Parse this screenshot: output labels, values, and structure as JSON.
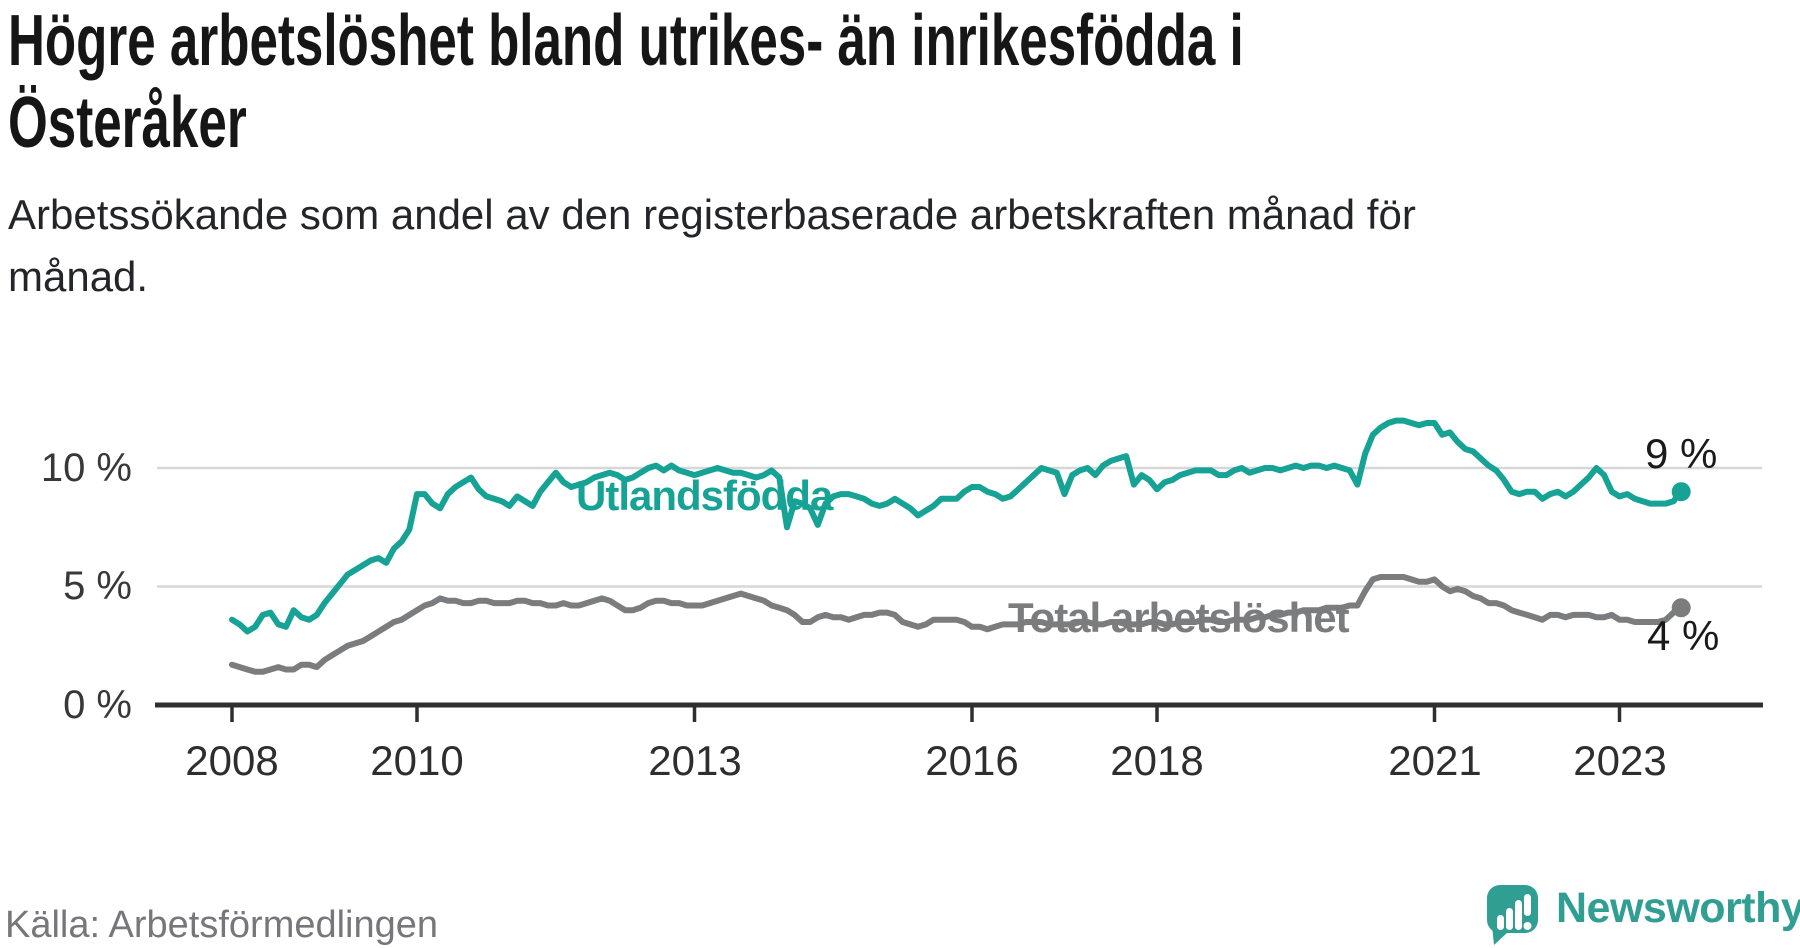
{
  "title": {
    "line1": "Högre arbetslöshet bland utrikes- än inrikesfödda i",
    "line2": "Österåker"
  },
  "subtitle": {
    "line1": "Arbetssökande som andel av den registerbaserade arbetskraften månad för",
    "line2": "månad."
  },
  "source": "Källa: Arbetsförmedlingen",
  "logo": {
    "text": "Newsworthy",
    "color": "#319e94"
  },
  "colors": {
    "axis": "#2f2f2f",
    "gridline": "#d7d7d7",
    "tick_label": "#2e2e2e",
    "end_label": "#1a1a1a"
  },
  "chart_data": {
    "type": "line",
    "title": "Högre arbetslöshet bland utrikes- än inrikesfödda i Österåker",
    "subtitle": "Arbetssökande som andel av den registerbaserade arbetskraften månad för månad.",
    "unit": "%",
    "x_unit": "month",
    "x_start": "2008-01",
    "x_end": "2023-09",
    "ylim": [
      0,
      12.6
    ],
    "grid": "horizontal",
    "legend_position": "inline-labels",
    "y_ticks": [
      {
        "value": 0,
        "label": "0 %"
      },
      {
        "value": 5,
        "label": "5 %"
      },
      {
        "value": 10,
        "label": "10 %"
      }
    ],
    "x_ticks": [
      {
        "year": 2008,
        "label": "2008"
      },
      {
        "year": 2010,
        "label": "2010"
      },
      {
        "year": 2013,
        "label": "2013"
      },
      {
        "year": 2016,
        "label": "2016"
      },
      {
        "year": 2018,
        "label": "2018"
      },
      {
        "year": 2021,
        "label": "2021"
      },
      {
        "year": 2023,
        "label": "2023"
      }
    ],
    "series": [
      {
        "name": "Utlandsfödda",
        "color": "#16a294",
        "end_label": "9 %",
        "end_value": 9.0,
        "values": [
          3.6,
          3.4,
          3.1,
          3.3,
          3.8,
          3.9,
          3.4,
          3.3,
          4.0,
          3.7,
          3.6,
          3.8,
          4.3,
          4.7,
          5.1,
          5.5,
          5.7,
          5.9,
          6.1,
          6.2,
          6.0,
          6.6,
          6.9,
          7.4,
          8.9,
          8.9,
          8.5,
          8.3,
          8.9,
          9.2,
          9.4,
          9.6,
          9.1,
          8.8,
          8.7,
          8.6,
          8.4,
          8.8,
          8.6,
          8.4,
          9.0,
          9.4,
          9.8,
          9.4,
          9.2,
          9.3,
          9.4,
          9.6,
          9.7,
          9.8,
          9.7,
          9.5,
          9.6,
          9.8,
          10.0,
          10.1,
          9.9,
          10.1,
          9.9,
          9.8,
          9.7,
          9.8,
          9.9,
          10.0,
          9.9,
          9.8,
          9.8,
          9.7,
          9.6,
          9.7,
          9.9,
          9.6,
          7.5,
          8.6,
          8.5,
          8.3,
          7.6,
          8.5,
          8.8,
          8.9,
          8.9,
          8.8,
          8.7,
          8.5,
          8.4,
          8.5,
          8.7,
          8.5,
          8.3,
          8.0,
          8.2,
          8.4,
          8.7,
          8.7,
          8.7,
          9.0,
          9.2,
          9.2,
          9.0,
          8.9,
          8.7,
          8.8,
          9.1,
          9.4,
          9.7,
          10.0,
          9.9,
          9.8,
          8.9,
          9.7,
          9.9,
          10.0,
          9.7,
          10.1,
          10.3,
          10.4,
          10.5,
          9.3,
          9.7,
          9.5,
          9.1,
          9.4,
          9.5,
          9.7,
          9.8,
          9.9,
          9.9,
          9.9,
          9.7,
          9.7,
          9.9,
          10.0,
          9.8,
          9.9,
          10.0,
          10.0,
          9.9,
          10.0,
          10.1,
          10.0,
          10.1,
          10.1,
          10.0,
          10.1,
          10.0,
          9.9,
          9.3,
          10.6,
          11.4,
          11.7,
          11.9,
          12.0,
          12.0,
          11.9,
          11.8,
          11.9,
          11.9,
          11.4,
          11.5,
          11.1,
          10.8,
          10.7,
          10.4,
          10.1,
          9.9,
          9.5,
          9.0,
          8.9,
          9.0,
          9.0,
          8.7,
          8.9,
          9.0,
          8.8,
          9.0,
          9.3,
          9.6,
          10.0,
          9.7,
          9.0,
          8.8,
          8.9,
          8.7,
          8.6,
          8.5,
          8.5,
          8.5,
          8.6,
          9.0
        ]
      },
      {
        "name": "Total arbetslöshet",
        "color": "#7b7c7e",
        "end_label": "4 %",
        "end_value": 4.1,
        "values": [
          1.7,
          1.6,
          1.5,
          1.4,
          1.4,
          1.5,
          1.6,
          1.5,
          1.5,
          1.7,
          1.7,
          1.6,
          1.9,
          2.1,
          2.3,
          2.5,
          2.6,
          2.7,
          2.9,
          3.1,
          3.3,
          3.5,
          3.6,
          3.8,
          4.0,
          4.2,
          4.3,
          4.5,
          4.4,
          4.4,
          4.3,
          4.3,
          4.4,
          4.4,
          4.3,
          4.3,
          4.3,
          4.4,
          4.4,
          4.3,
          4.3,
          4.2,
          4.2,
          4.3,
          4.2,
          4.2,
          4.3,
          4.4,
          4.5,
          4.4,
          4.2,
          4.0,
          4.0,
          4.1,
          4.3,
          4.4,
          4.4,
          4.3,
          4.3,
          4.2,
          4.2,
          4.2,
          4.3,
          4.4,
          4.5,
          4.6,
          4.7,
          4.6,
          4.5,
          4.4,
          4.2,
          4.1,
          4.0,
          3.8,
          3.5,
          3.5,
          3.7,
          3.8,
          3.7,
          3.7,
          3.6,
          3.7,
          3.8,
          3.8,
          3.9,
          3.9,
          3.8,
          3.5,
          3.4,
          3.3,
          3.4,
          3.6,
          3.6,
          3.6,
          3.6,
          3.5,
          3.3,
          3.3,
          3.2,
          3.3,
          3.4,
          3.4,
          3.4,
          3.5,
          3.5,
          3.5,
          3.4,
          3.4,
          3.4,
          3.4,
          3.5,
          3.5,
          3.4,
          3.4,
          3.5,
          3.5,
          3.4,
          3.4,
          3.4,
          3.5,
          3.5,
          3.4,
          3.4,
          3.5,
          3.5,
          3.5,
          3.6,
          3.6,
          3.5,
          3.5,
          3.6,
          3.6,
          3.6,
          3.7,
          3.7,
          3.8,
          3.8,
          3.9,
          3.9,
          4.0,
          4.0,
          4.0,
          4.1,
          4.1,
          4.1,
          4.2,
          4.2,
          4.8,
          5.3,
          5.4,
          5.4,
          5.4,
          5.4,
          5.3,
          5.2,
          5.2,
          5.3,
          5.0,
          4.8,
          4.9,
          4.8,
          4.6,
          4.5,
          4.3,
          4.3,
          4.2,
          4.0,
          3.9,
          3.8,
          3.7,
          3.6,
          3.8,
          3.8,
          3.7,
          3.8,
          3.8,
          3.8,
          3.7,
          3.7,
          3.8,
          3.6,
          3.6,
          3.5,
          3.5,
          3.5,
          3.5,
          3.6,
          3.9,
          4.1
        ]
      }
    ]
  }
}
